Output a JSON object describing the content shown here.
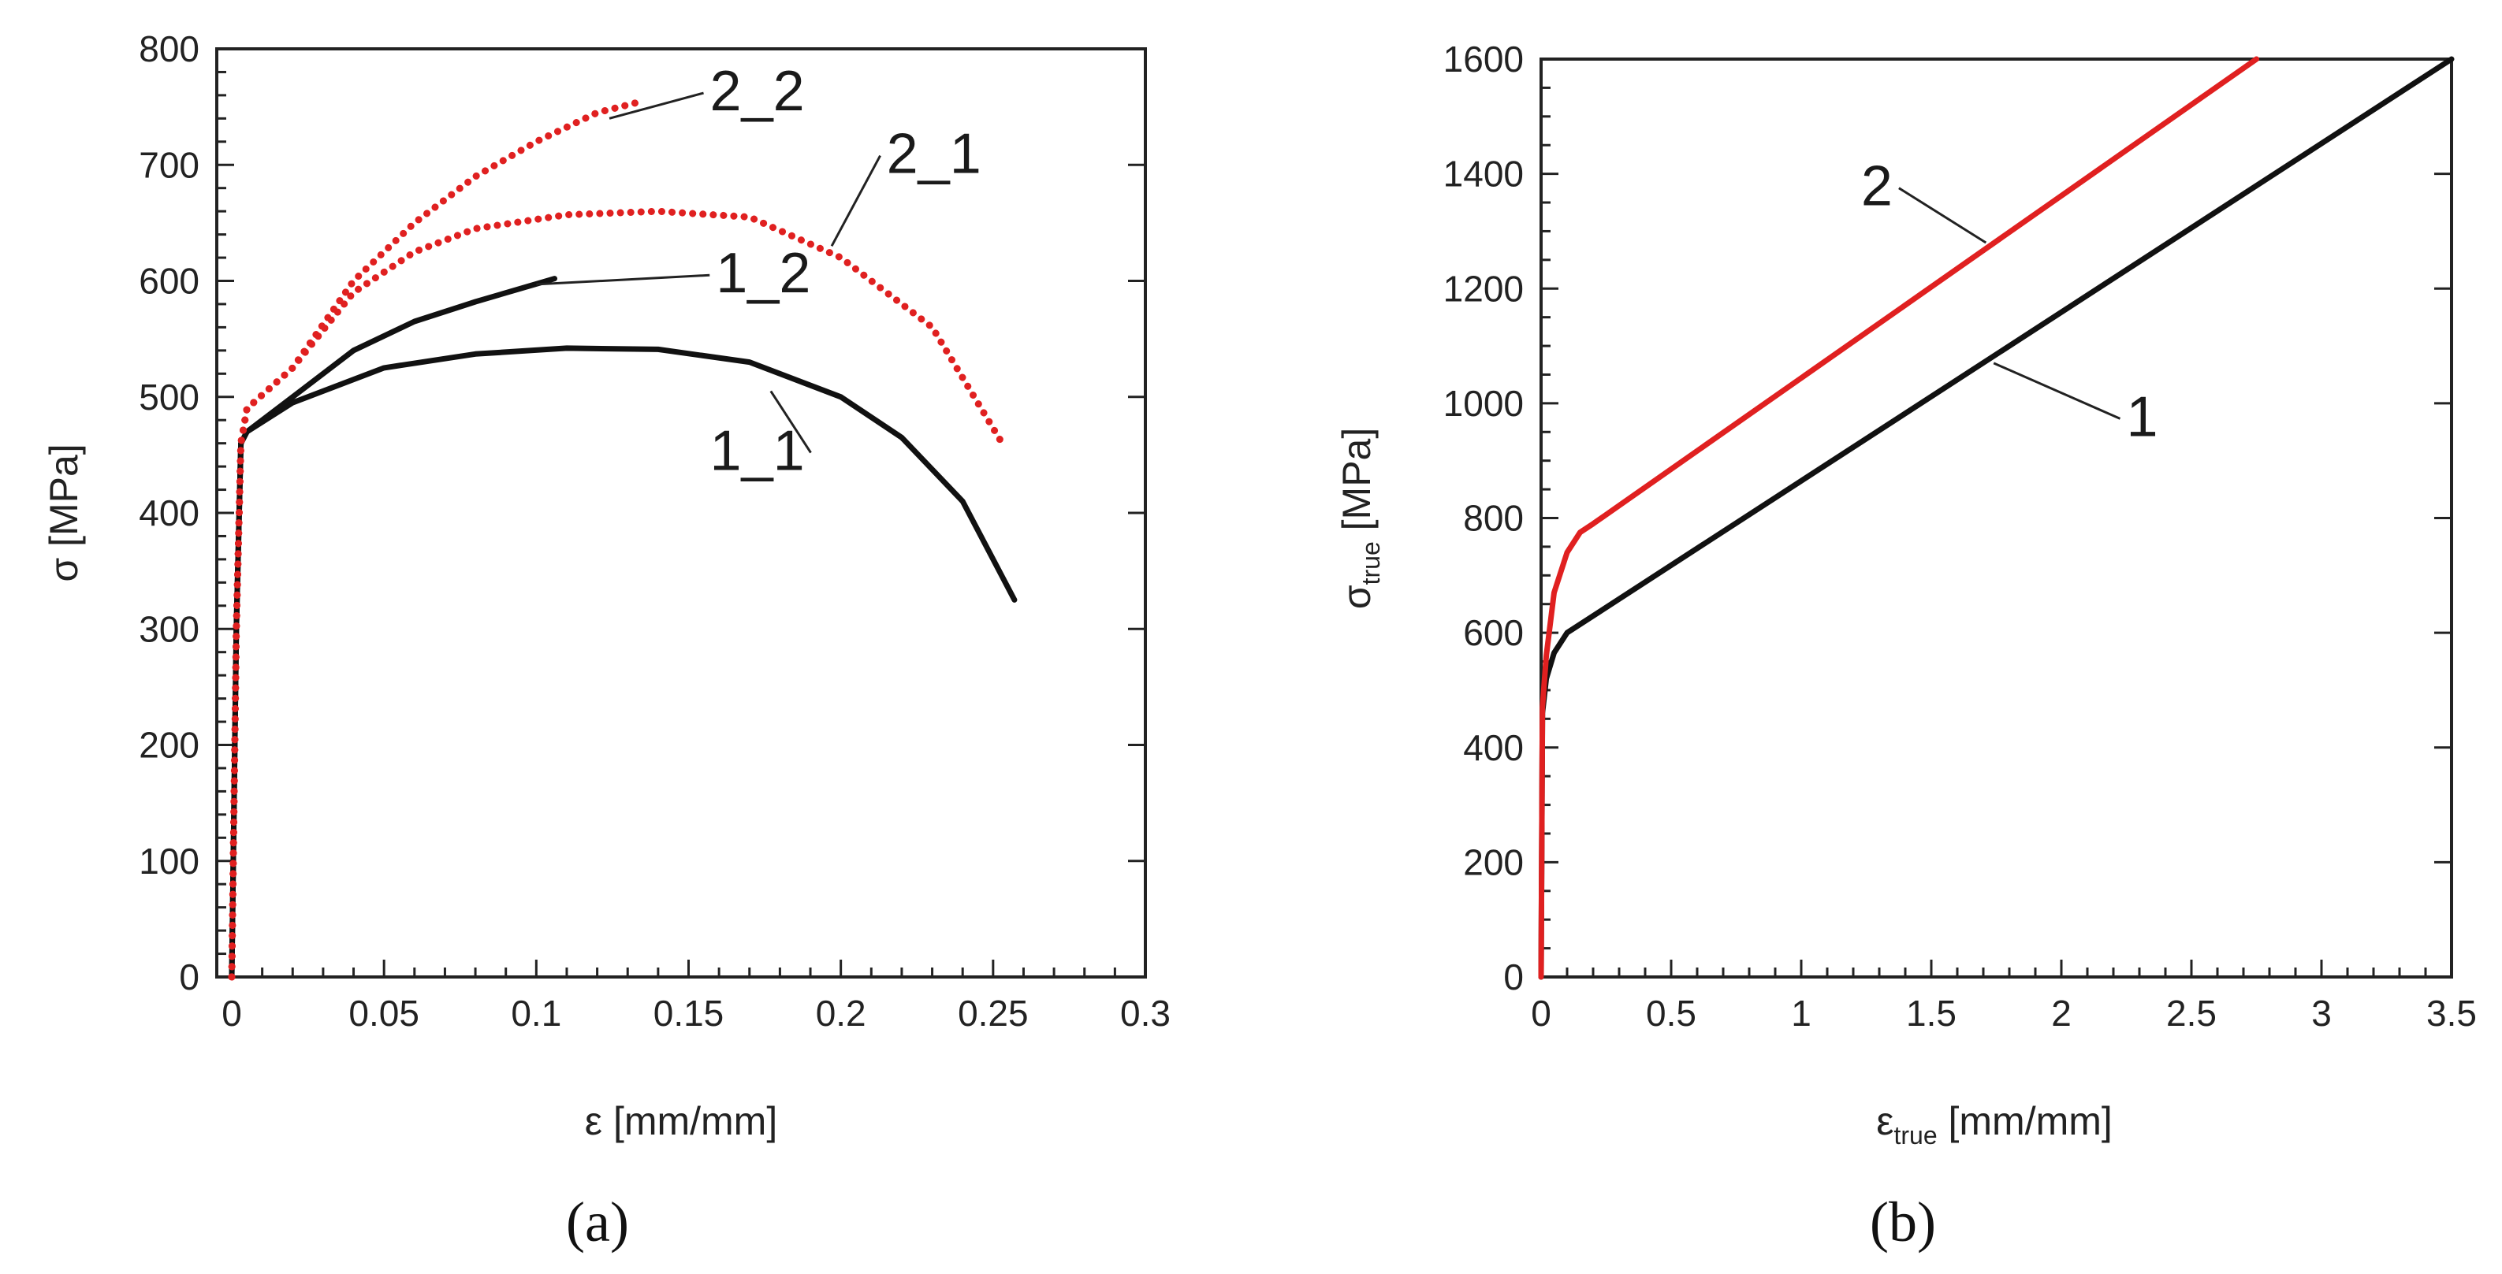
{
  "chart_data": [
    {
      "panel": "a",
      "caption": "(a)",
      "type": "line",
      "ylabel": "σ [MPa]",
      "xlabel": "ε [mm/mm]",
      "xlim": [
        0,
        0.3
      ],
      "ylim": [
        0,
        800
      ],
      "xticks": [
        0,
        0.05,
        0.1,
        0.15,
        0.2,
        0.25,
        0.3
      ],
      "yticks": [
        0,
        100,
        200,
        300,
        400,
        500,
        600,
        700,
        800
      ],
      "xtick_labels": [
        "0",
        "0.05",
        "0.1",
        "0.15",
        "0.2",
        "0.25",
        "0.3"
      ],
      "ytick_labels": [
        "0",
        "100",
        "200",
        "300",
        "400",
        "500",
        "600",
        "700",
        "800"
      ],
      "series": [
        {
          "name": "1_1",
          "color": "#111111",
          "style": "solid",
          "points": [
            [
              0,
              0
            ],
            [
              0.0015,
              300
            ],
            [
              0.003,
              460
            ],
            [
              0.005,
              470
            ],
            [
              0.02,
              495
            ],
            [
              0.05,
              525
            ],
            [
              0.08,
              537
            ],
            [
              0.11,
              542
            ],
            [
              0.14,
              541
            ],
            [
              0.17,
              530
            ],
            [
              0.2,
              500
            ],
            [
              0.22,
              465
            ],
            [
              0.24,
              410
            ],
            [
              0.257,
              325
            ]
          ]
        },
        {
          "name": "1_2",
          "color": "#111111",
          "style": "solid",
          "points": [
            [
              0,
              0
            ],
            [
              0.0015,
              300
            ],
            [
              0.003,
              460
            ],
            [
              0.005,
              470
            ],
            [
              0.02,
              500
            ],
            [
              0.04,
              540
            ],
            [
              0.06,
              565
            ],
            [
              0.08,
              582
            ],
            [
              0.106,
              602
            ]
          ]
        },
        {
          "name": "2_1",
          "color": "#e02020",
          "style": "dotted",
          "points": [
            [
              0,
              0
            ],
            [
              0.0015,
              300
            ],
            [
              0.003,
              460
            ],
            [
              0.005,
              490
            ],
            [
              0.02,
              525
            ],
            [
              0.04,
              590
            ],
            [
              0.06,
              625
            ],
            [
              0.08,
              645
            ],
            [
              0.11,
              657
            ],
            [
              0.14,
              660
            ],
            [
              0.17,
              655
            ],
            [
              0.2,
              620
            ],
            [
              0.23,
              560
            ],
            [
              0.253,
              460
            ]
          ]
        },
        {
          "name": "2_2",
          "color": "#e02020",
          "style": "dotted",
          "points": [
            [
              0,
              0
            ],
            [
              0.0015,
              300
            ],
            [
              0.003,
              460
            ],
            [
              0.005,
              490
            ],
            [
              0.02,
              525
            ],
            [
              0.04,
              600
            ],
            [
              0.06,
              650
            ],
            [
              0.08,
              690
            ],
            [
              0.1,
              720
            ],
            [
              0.12,
              745
            ],
            [
              0.135,
              755
            ]
          ]
        }
      ],
      "annotations": [
        {
          "text": "2_2",
          "x": 0.157,
          "y": 747,
          "ax": 0.124,
          "ay": 740
        },
        {
          "text": "2_1",
          "x": 0.215,
          "y": 693,
          "ax": 0.197,
          "ay": 630
        },
        {
          "text": "1_2",
          "x": 0.159,
          "y": 590,
          "ax": 0.1,
          "ay": 597
        },
        {
          "text": "1_1",
          "x": 0.157,
          "y": 437,
          "ax": 0.177,
          "ay": 505
        }
      ]
    },
    {
      "panel": "b",
      "caption": "(b)",
      "type": "line",
      "ylabel_main": "σ",
      "ylabel_sub": "true",
      "ylabel_rest": " [MPa]",
      "xlabel_main": "ε",
      "xlabel_sub": "true",
      "xlabel_rest": " [mm/mm]",
      "xlim": [
        0,
        3.5
      ],
      "ylim": [
        0,
        1600
      ],
      "xticks": [
        0,
        0.5,
        1,
        1.5,
        2,
        2.5,
        3,
        3.5
      ],
      "yticks": [
        0,
        200,
        400,
        600,
        800,
        1000,
        1200,
        1400,
        1600
      ],
      "xtick_labels": [
        "0",
        "0.5",
        "1",
        "1.5",
        "2",
        "2.5",
        "3",
        "3.5"
      ],
      "ytick_labels": [
        "0",
        "200",
        "400",
        "600",
        "800",
        "1000",
        "1200",
        "1400",
        "1600"
      ],
      "series": [
        {
          "name": "1",
          "color": "#111111",
          "style": "solid",
          "points": [
            [
              0,
              0
            ],
            [
              0.005,
              460
            ],
            [
              0.02,
              520
            ],
            [
              0.05,
              565
            ],
            [
              0.1,
              600
            ],
            [
              3.5,
              1600
            ]
          ]
        },
        {
          "name": "2",
          "color": "#e02020",
          "style": "solid",
          "points": [
            [
              0,
              0
            ],
            [
              0.005,
              470
            ],
            [
              0.02,
              560
            ],
            [
              0.05,
              670
            ],
            [
              0.1,
              740
            ],
            [
              0.15,
              775
            ],
            [
              0.2,
              790
            ],
            [
              2.75,
              1600
            ]
          ]
        }
      ],
      "annotations": [
        {
          "text": "2",
          "x": 1.23,
          "y": 1345,
          "ax": 1.71,
          "ay": 1280
        },
        {
          "text": "1",
          "x": 2.25,
          "y": 943,
          "ax": 1.74,
          "ay": 1070
        }
      ]
    }
  ]
}
